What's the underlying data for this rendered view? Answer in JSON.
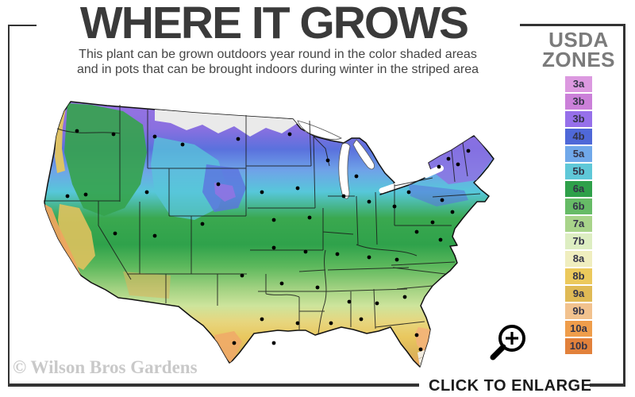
{
  "header": {
    "title": "WHERE IT GROWS",
    "subtitle_line1": "This plant can be grown outdoors year round in the color shaded areas",
    "subtitle_line2": "and in pots that can be brought indoors during winter in the striped area"
  },
  "legend": {
    "title_line1": "USDA",
    "title_line2": "ZONES",
    "zones": [
      {
        "label": "3a",
        "color": "#dc99e0"
      },
      {
        "label": "3b",
        "color": "#cb80d9"
      },
      {
        "label": "3b",
        "color": "#9670ea"
      },
      {
        "label": "4b",
        "color": "#4f68d8"
      },
      {
        "label": "5a",
        "color": "#70a8ea"
      },
      {
        "label": "5b",
        "color": "#5fc8d8"
      },
      {
        "label": "6a",
        "color": "#2fa04a"
      },
      {
        "label": "6b",
        "color": "#66bb66"
      },
      {
        "label": "7a",
        "color": "#a8d48a"
      },
      {
        "label": "7b",
        "color": "#ddeec2"
      },
      {
        "label": "8a",
        "color": "#f0eebf"
      },
      {
        "label": "8b",
        "color": "#ecc95c"
      },
      {
        "label": "9a",
        "color": "#e0ba55"
      },
      {
        "label": "9b",
        "color": "#f2c28e"
      },
      {
        "label": "10a",
        "color": "#ef9d4b"
      },
      {
        "label": "10b",
        "color": "#e2813b"
      }
    ]
  },
  "map": {
    "alt": "USDA hardiness zone map of the continental United States shaded from purple and blue in the north through green and yellow to orange in the south, with black dots marking cities and a striped pale area at the southern tip of Florida"
  },
  "footer": {
    "watermark": "© Wilson Bros Gardens",
    "enlarge_label": "CLICK TO ENLARGE",
    "enlarge_icon": "magnifier-plus"
  },
  "colors": {
    "frame": "#333333",
    "title": "#3a3a3a",
    "subtitle": "#454545",
    "legend_title": "#7b7b7b",
    "watermark": "#c9c9c9"
  }
}
